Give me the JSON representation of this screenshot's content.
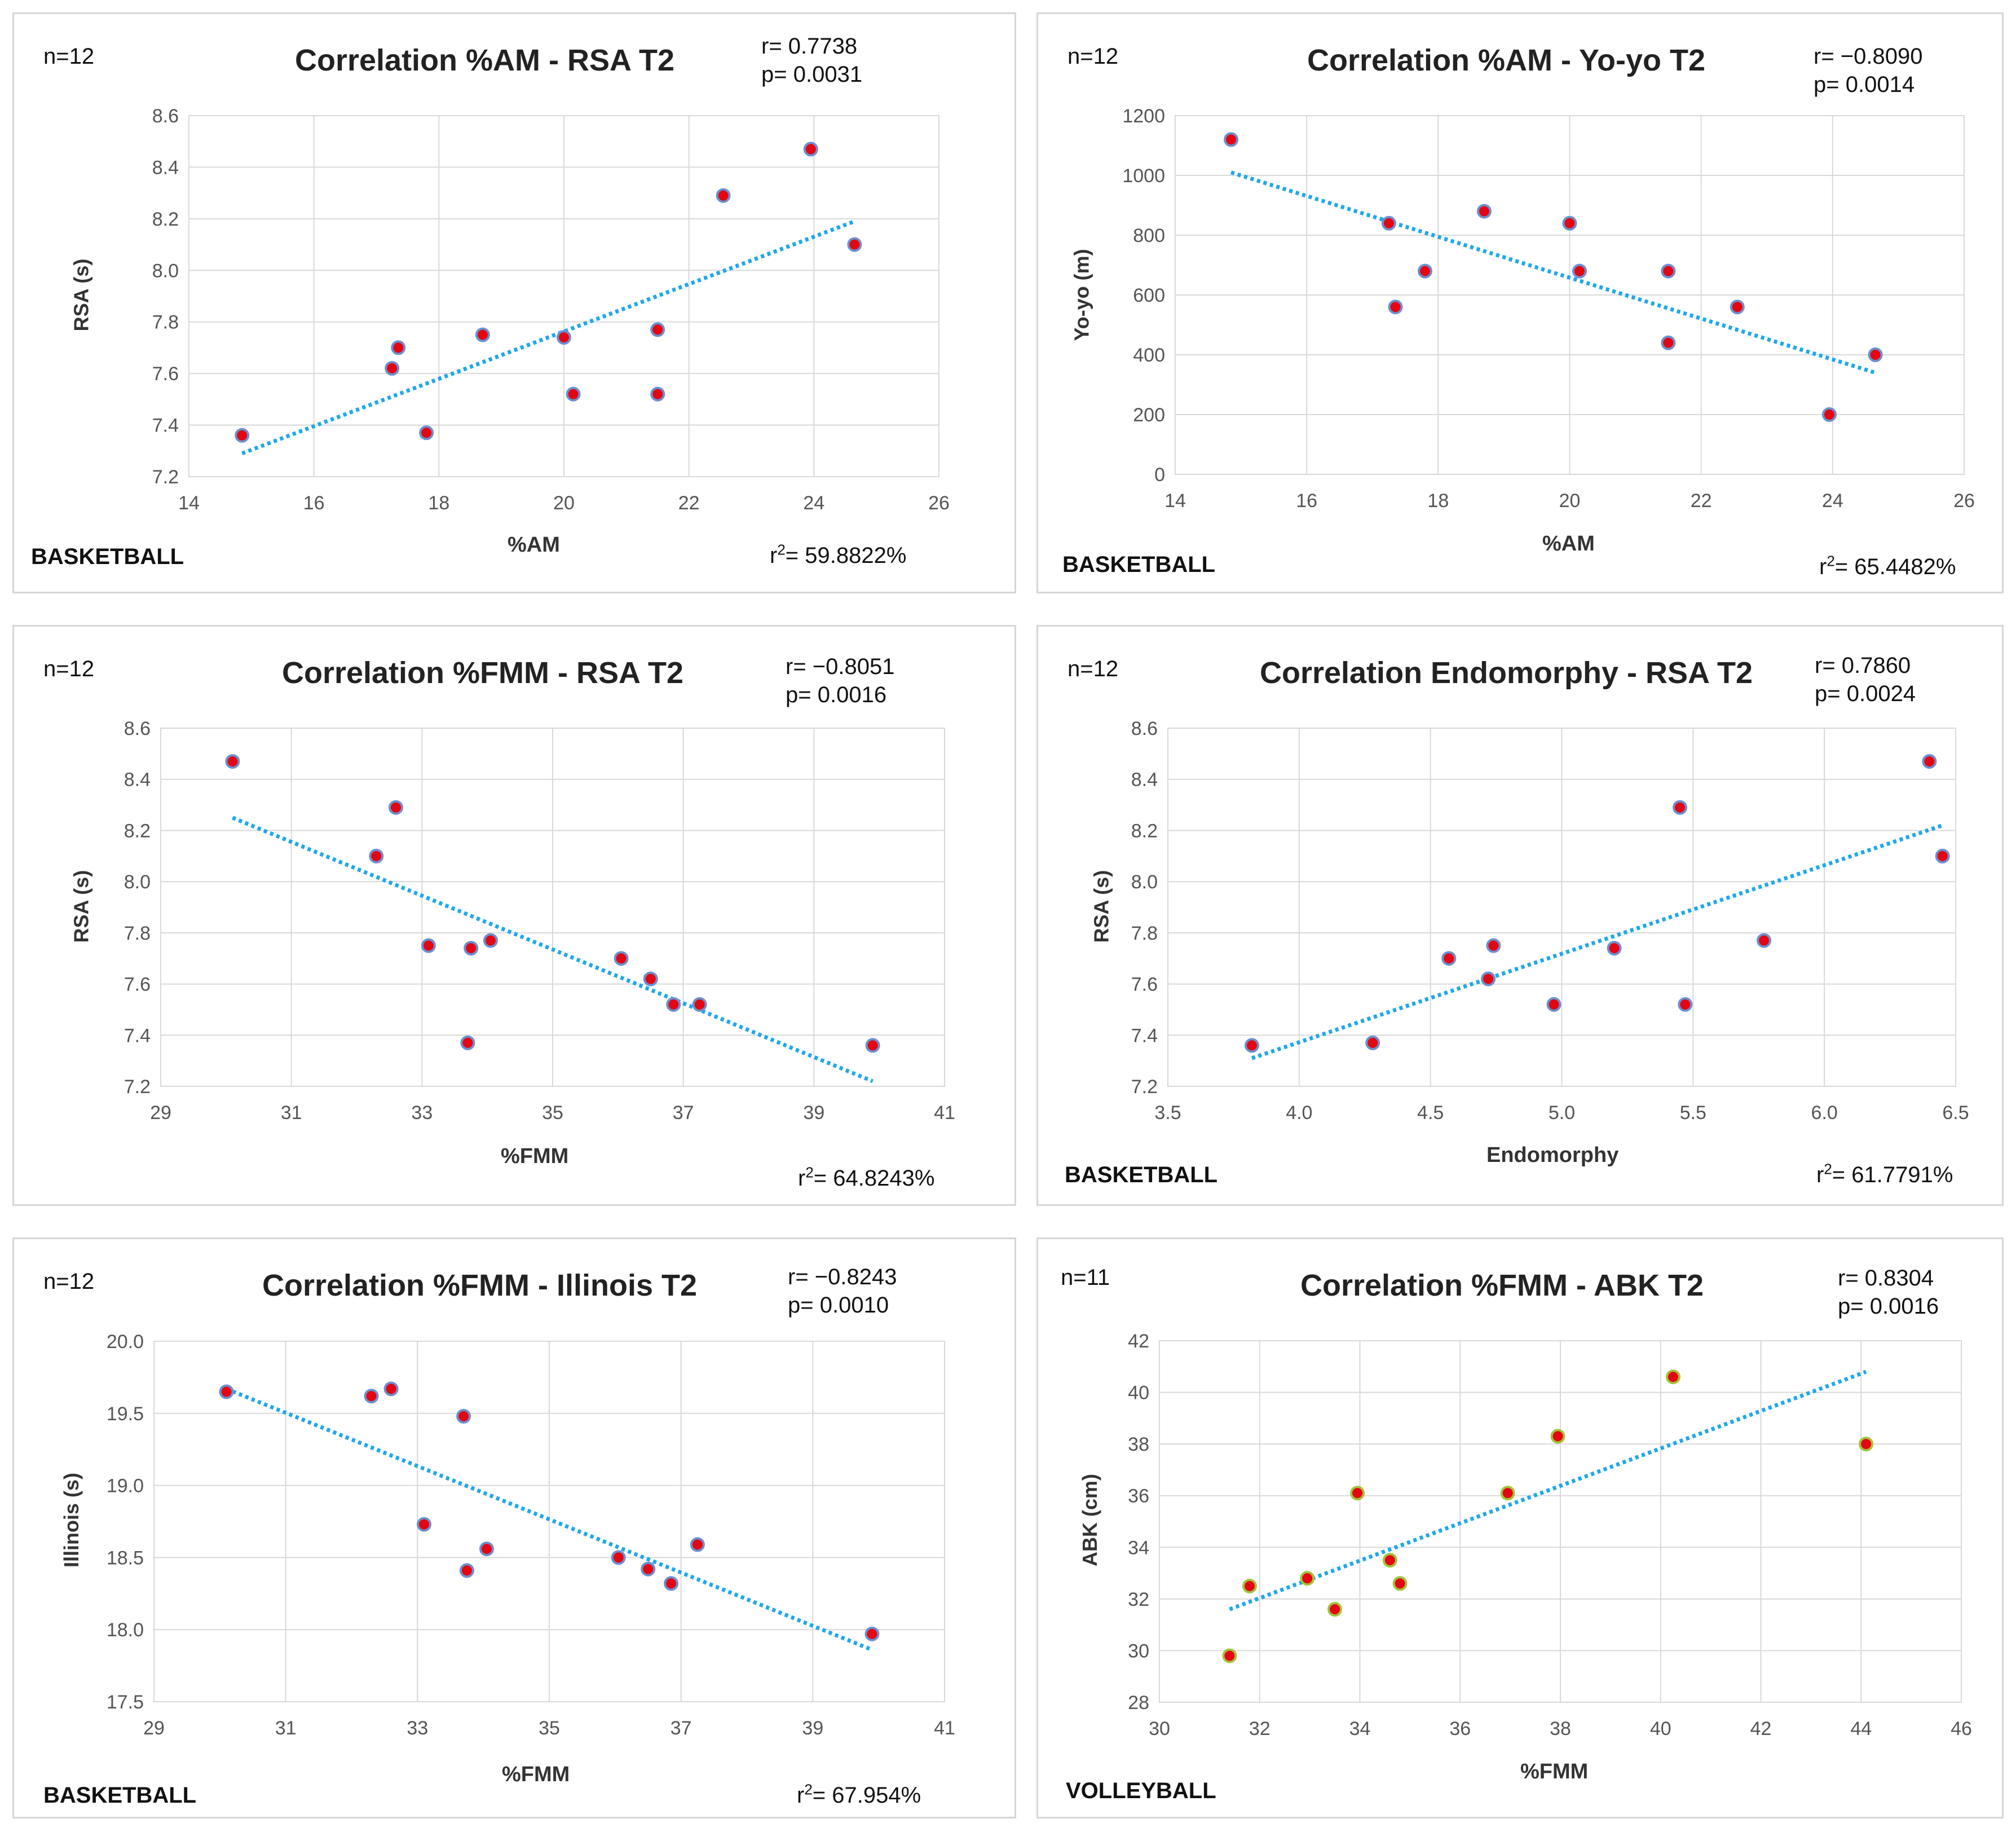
{
  "chart_data": [
    {
      "type": "scatter",
      "title": "Correlation %AM - RSA T2",
      "n_label": "n=12",
      "r_label": "r= 0.7738",
      "p_label": "p= 0.0031",
      "r2_prefix": "r",
      "r2_value": "= 59.8822%",
      "sport": "BASKETBALL",
      "xlabel": "%AM",
      "ylabel": "RSA (s)",
      "xlim": [
        14,
        26
      ],
      "ylim": [
        7.2,
        8.6
      ],
      "xticks": [
        "14",
        "16",
        "18",
        "20",
        "22",
        "24",
        "26"
      ],
      "yticks": [
        "7.2",
        "7.4",
        "7.6",
        "7.8",
        "8.0",
        "8.2",
        "8.4",
        "8.6"
      ],
      "x": [
        14.85,
        17.25,
        17.35,
        17.8,
        18.7,
        20.0,
        20.15,
        21.5,
        21.5,
        22.55,
        23.95,
        24.65
      ],
      "y": [
        7.36,
        7.62,
        7.7,
        7.37,
        7.75,
        7.74,
        7.52,
        7.52,
        7.77,
        8.29,
        8.47,
        8.1
      ],
      "trend": {
        "x": [
          14.85,
          24.65
        ],
        "y": [
          7.29,
          8.19
        ]
      },
      "marker_color": "#e30613",
      "marker_edge": "#6d8fcf",
      "trend_color": "#1fa8e8",
      "grid": true
    },
    {
      "type": "scatter",
      "title": "Correlation %AM - Yo-yo T2",
      "n_label": "n=12",
      "r_label": "r= −0.8090",
      "p_label": "p= 0.0014",
      "r2_prefix": "r",
      "r2_value": "= 65.4482%",
      "sport": "BASKETBALL",
      "xlabel": "%AM",
      "ylabel": "Yo-yo (m)",
      "xlim": [
        14,
        26
      ],
      "ylim": [
        0,
        1200
      ],
      "xticks": [
        "14",
        "16",
        "18",
        "20",
        "22",
        "24",
        "26"
      ],
      "yticks": [
        "0",
        "200",
        "400",
        "600",
        "800",
        "1000",
        "1200"
      ],
      "x": [
        14.85,
        17.25,
        17.35,
        17.8,
        18.7,
        20.0,
        20.15,
        21.5,
        21.5,
        22.55,
        23.95,
        24.65
      ],
      "y": [
        1120,
        840,
        560,
        680,
        880,
        840,
        680,
        680,
        440,
        560,
        200,
        400
      ],
      "trend": {
        "x": [
          14.85,
          24.65
        ],
        "y": [
          1010,
          340
        ]
      },
      "marker_color": "#e30613",
      "marker_edge": "#6d8fcf",
      "trend_color": "#1fa8e8",
      "grid": true
    },
    {
      "type": "scatter",
      "title": "Correlation %FMM - RSA T2",
      "n_label": "n=12",
      "r_label": "r= −0.8051",
      "p_label": "p= 0.0016",
      "r2_prefix": "r",
      "r2_value": "= 64.8243%",
      "sport": "",
      "xlabel": "%FMM",
      "ylabel": "RSA (s)",
      "xlim": [
        29,
        41
      ],
      "ylim": [
        7.2,
        8.6
      ],
      "xticks": [
        "29",
        "31",
        "33",
        "35",
        "37",
        "39",
        "41"
      ],
      "yticks": [
        "7.2",
        "7.4",
        "7.6",
        "7.8",
        "8.0",
        "8.2",
        "8.4",
        "8.6"
      ],
      "x": [
        30.1,
        32.3,
        32.6,
        33.1,
        33.7,
        33.75,
        34.05,
        36.05,
        36.5,
        36.85,
        37.25,
        39.9
      ],
      "y": [
        8.47,
        8.1,
        8.29,
        7.75,
        7.37,
        7.74,
        7.77,
        7.7,
        7.62,
        7.52,
        7.52,
        7.36
      ],
      "trend": {
        "x": [
          30.1,
          39.9
        ],
        "y": [
          8.25,
          7.22
        ]
      },
      "marker_color": "#e30613",
      "marker_edge": "#6d8fcf",
      "trend_color": "#1fa8e8",
      "grid": true
    },
    {
      "type": "scatter",
      "title": "Correlation Endomorphy - RSA T2",
      "n_label": "n=12",
      "r_label": "r= 0.7860",
      "p_label": "p= 0.0024",
      "r2_prefix": "r",
      "r2_value": "= 61.7791%",
      "sport": "BASKETBALL",
      "xlabel": "Endomorphy",
      "ylabel": "RSA (s)",
      "xlim": [
        3.5,
        6.5
      ],
      "ylim": [
        7.2,
        8.6
      ],
      "xticks": [
        "3.5",
        "4.0",
        "4.5",
        "5.0",
        "5.5",
        "6.0",
        "6.5"
      ],
      "yticks": [
        "7.2",
        "7.4",
        "7.6",
        "7.8",
        "8.0",
        "8.2",
        "8.4",
        "8.6"
      ],
      "x": [
        3.82,
        4.28,
        4.57,
        4.72,
        4.74,
        4.97,
        5.2,
        5.45,
        5.47,
        5.77,
        6.4,
        6.45
      ],
      "y": [
        7.36,
        7.37,
        7.7,
        7.62,
        7.75,
        7.52,
        7.74,
        8.29,
        7.52,
        7.77,
        8.47,
        8.1
      ],
      "trend": {
        "x": [
          3.82,
          6.45
        ],
        "y": [
          7.31,
          8.22
        ]
      },
      "marker_color": "#e30613",
      "marker_edge": "#6d8fcf",
      "trend_color": "#1fa8e8",
      "grid": true
    },
    {
      "type": "scatter",
      "title": "Correlation %FMM - Illinois T2",
      "n_label": "n=12",
      "r_label": "r= −0.8243",
      "p_label": "p= 0.0010",
      "r2_prefix": "r",
      "r2_value": "= 67.954%",
      "sport": "BASKETBALL",
      "xlabel": "%FMM",
      "ylabel": "Illinois (s)",
      "xlim": [
        29,
        41
      ],
      "ylim": [
        17.5,
        20.0
      ],
      "xticks": [
        "29",
        "31",
        "33",
        "35",
        "37",
        "39",
        "41"
      ],
      "yticks": [
        "17.5",
        "18.0",
        "18.5",
        "19.0",
        "19.5",
        "20.0"
      ],
      "x": [
        30.1,
        32.3,
        32.6,
        33.1,
        33.7,
        33.75,
        34.05,
        36.05,
        36.5,
        36.85,
        37.25,
        39.9
      ],
      "y": [
        19.65,
        19.62,
        19.67,
        18.73,
        19.48,
        18.41,
        18.56,
        18.5,
        18.42,
        18.32,
        18.59,
        17.97
      ],
      "trend": {
        "x": [
          30.1,
          39.9
        ],
        "y": [
          19.67,
          17.86
        ]
      },
      "marker_color": "#e30613",
      "marker_edge": "#6d8fcf",
      "trend_color": "#1fa8e8",
      "grid": true
    },
    {
      "type": "scatter",
      "title": "Correlation %FMM - ABK T2",
      "n_label": "n=11",
      "r_label": "r= 0.8304",
      "p_label": "p= 0.0016",
      "r2_prefix": "",
      "r2_value": "",
      "sport": "VOLLEYBALL",
      "xlabel": "%FMM",
      "ylabel": "ABK (cm)",
      "xlim": [
        30,
        46
      ],
      "ylim": [
        28,
        42
      ],
      "xticks": [
        "30",
        "32",
        "34",
        "36",
        "38",
        "40",
        "42",
        "44",
        "46"
      ],
      "yticks": [
        "28",
        "30",
        "32",
        "34",
        "36",
        "38",
        "40",
        "42"
      ],
      "x": [
        31.4,
        31.8,
        32.95,
        33.5,
        33.95,
        34.6,
        34.8,
        36.95,
        37.95,
        40.25,
        44.1
      ],
      "y": [
        29.8,
        32.5,
        32.8,
        31.6,
        36.1,
        33.5,
        32.6,
        36.1,
        38.3,
        40.6,
        38.0
      ],
      "trend": {
        "x": [
          31.4,
          44.1
        ],
        "y": [
          31.6,
          40.8
        ]
      },
      "marker_color": "#e30613",
      "marker_edge": "#a4c23a",
      "trend_color": "#1fa8e8",
      "grid": true
    }
  ]
}
